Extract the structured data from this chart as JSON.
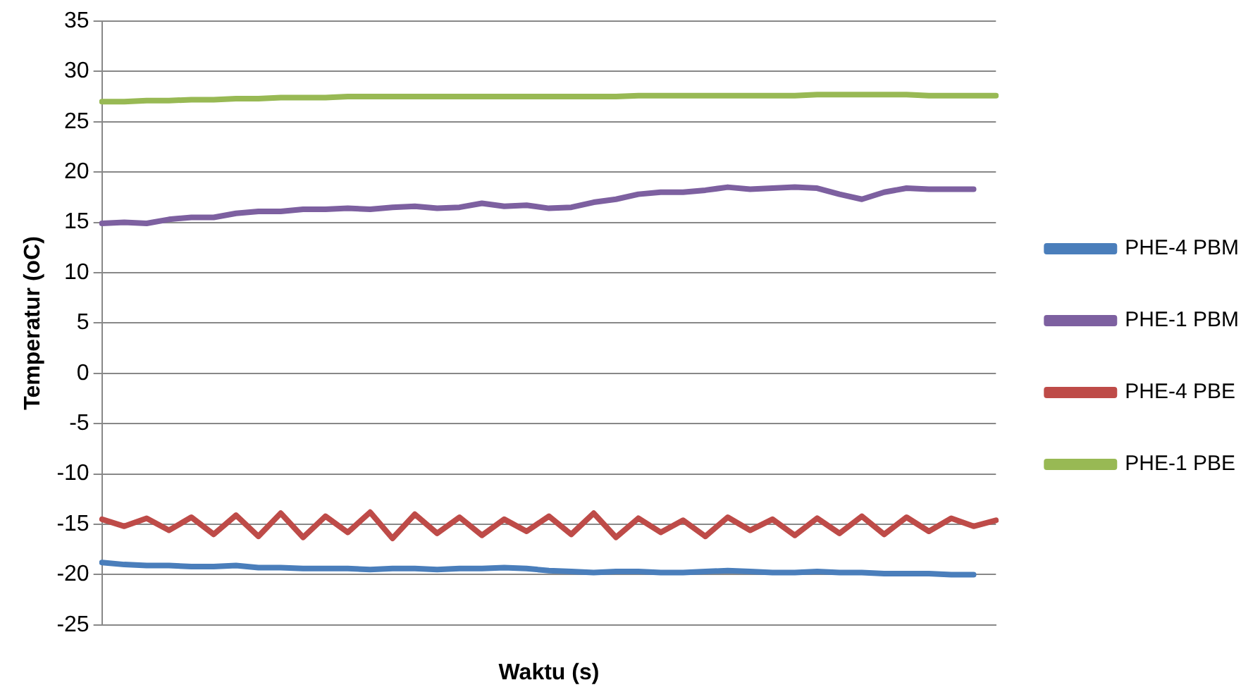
{
  "chart_data": {
    "type": "line",
    "xlabel": "Waktu (s)",
    "ylabel": "Temperatur (oC)",
    "categories": [
      null,
      null,
      null,
      null,
      null,
      null,
      null,
      null,
      null,
      null,
      null,
      null,
      null,
      null,
      null,
      null,
      null,
      null,
      null,
      null,
      null,
      null,
      null,
      null,
      null,
      null,
      null,
      null,
      null,
      null,
      null,
      null,
      null,
      null,
      null,
      null,
      null,
      null,
      null,
      null,
      null
    ],
    "ylim": [
      -25,
      35
    ],
    "yticks": [
      -25,
      -20,
      -15,
      -10,
      -5,
      0,
      5,
      10,
      15,
      20,
      25,
      30,
      35
    ],
    "grid": "y",
    "legend": "right",
    "marker": "none",
    "line_style": "solid",
    "series": [
      {
        "name": "PHE-4 PBM",
        "color": "#4a7ebb",
        "values": [
          -18.8,
          -19.0,
          -19.1,
          -19.1,
          -19.2,
          -19.2,
          -19.1,
          -19.3,
          -19.3,
          -19.4,
          -19.4,
          -19.4,
          -19.5,
          -19.4,
          -19.4,
          -19.5,
          -19.4,
          -19.4,
          -19.3,
          -19.4,
          -19.6,
          -19.7,
          -19.8,
          -19.7,
          -19.7,
          -19.8,
          -19.8,
          -19.7,
          -19.6,
          -19.7,
          -19.8,
          -19.8,
          -19.7,
          -19.8,
          -19.8,
          -19.9,
          -19.9,
          -19.9,
          -20.0,
          -20.0,
          null
        ]
      },
      {
        "name": "PHE-1 PBM",
        "color": "#7d60a0",
        "values": [
          14.9,
          15.0,
          14.9,
          15.3,
          15.5,
          15.5,
          15.9,
          16.1,
          16.1,
          16.3,
          16.3,
          16.4,
          16.3,
          16.5,
          16.6,
          16.4,
          16.5,
          16.9,
          16.6,
          16.7,
          16.4,
          16.5,
          17.0,
          17.3,
          17.8,
          18.0,
          18.0,
          18.2,
          18.5,
          18.3,
          18.4,
          18.5,
          18.4,
          17.8,
          17.3,
          18.0,
          18.4,
          18.3,
          18.3,
          18.3,
          null
        ]
      },
      {
        "name": "PHE-4 PBE",
        "color": "#be4b48",
        "values": [
          -14.5,
          -15.2,
          -14.4,
          -15.6,
          -14.3,
          -16.0,
          -14.1,
          -16.2,
          -13.9,
          -16.3,
          -14.2,
          -15.8,
          -13.8,
          -16.4,
          -14.0,
          -15.9,
          -14.3,
          -16.1,
          -14.5,
          -15.7,
          -14.2,
          -16.0,
          -13.9,
          -16.3,
          -14.4,
          -15.8,
          -14.6,
          -16.2,
          -14.3,
          -15.6,
          -14.5,
          -16.1,
          -14.4,
          -15.9,
          -14.2,
          -16.0,
          -14.3,
          -15.7,
          -14.4,
          -15.2,
          -14.6
        ]
      },
      {
        "name": "PHE-1 PBE",
        "color": "#98b954",
        "values": [
          27.0,
          27.0,
          27.1,
          27.1,
          27.2,
          27.2,
          27.3,
          27.3,
          27.4,
          27.4,
          27.4,
          27.5,
          27.5,
          27.5,
          27.5,
          27.5,
          27.5,
          27.5,
          27.5,
          27.5,
          27.5,
          27.5,
          27.5,
          27.5,
          27.6,
          27.6,
          27.6,
          27.6,
          27.6,
          27.6,
          27.6,
          27.6,
          27.7,
          27.7,
          27.7,
          27.7,
          27.7,
          27.6,
          27.6,
          27.6,
          27.6
        ]
      }
    ]
  }
}
